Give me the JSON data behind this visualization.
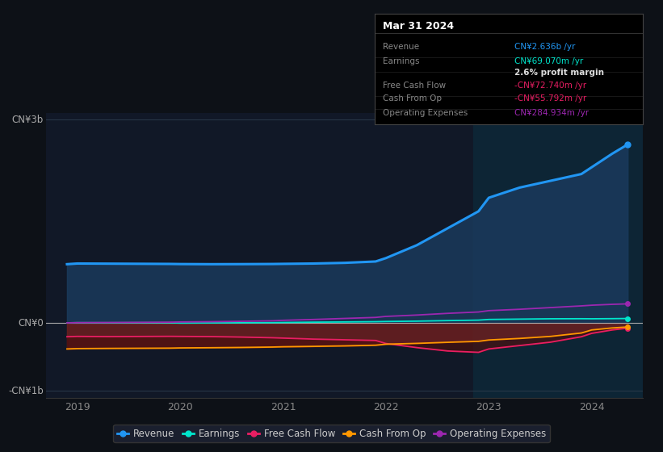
{
  "background_color": "#0d1117",
  "plot_bg_color": "#111827",
  "years": [
    2018.9,
    2019.0,
    2019.3,
    2019.6,
    2019.9,
    2020.0,
    2020.3,
    2020.6,
    2020.9,
    2021.0,
    2021.3,
    2021.6,
    2021.9,
    2022.0,
    2022.3,
    2022.6,
    2022.9,
    2023.0,
    2023.3,
    2023.6,
    2023.9,
    2024.0,
    2024.2,
    2024.35
  ],
  "revenue": [
    870,
    880,
    878,
    876,
    874,
    872,
    870,
    871,
    873,
    875,
    880,
    890,
    910,
    960,
    1150,
    1400,
    1650,
    1850,
    2000,
    2100,
    2200,
    2300,
    2500,
    2636
  ],
  "earnings": [
    5,
    8,
    7,
    8,
    7,
    2,
    4,
    6,
    8,
    10,
    15,
    18,
    22,
    25,
    30,
    38,
    45,
    55,
    60,
    65,
    66,
    65,
    67,
    69
  ],
  "free_cash_flow": [
    -200,
    -195,
    -198,
    -196,
    -194,
    -195,
    -198,
    -205,
    -215,
    -220,
    -235,
    -245,
    -255,
    -300,
    -360,
    -410,
    -430,
    -380,
    -330,
    -280,
    -200,
    -150,
    -100,
    -73
  ],
  "cash_from_op": [
    -380,
    -375,
    -372,
    -370,
    -368,
    -365,
    -362,
    -358,
    -352,
    -348,
    -342,
    -335,
    -325,
    -310,
    -298,
    -282,
    -268,
    -248,
    -225,
    -195,
    -145,
    -100,
    -70,
    -56
  ],
  "operating_expenses": [
    5,
    8,
    10,
    12,
    15,
    18,
    22,
    28,
    35,
    42,
    55,
    70,
    85,
    100,
    120,
    145,
    165,
    185,
    205,
    230,
    255,
    265,
    278,
    285
  ],
  "revenue_color": "#2196f3",
  "earnings_color": "#00e5cc",
  "free_cash_flow_color": "#e91e63",
  "cash_from_op_color": "#ff9800",
  "operating_expenses_color": "#9c27b0",
  "revenue_fill_color": "#1a3a5c",
  "dark_red_fill": "#5c1a1a",
  "ylim": [
    -1100,
    3100
  ],
  "xlim": [
    2018.7,
    2024.5
  ],
  "xticks": [
    2019,
    2020,
    2021,
    2022,
    2023,
    2024
  ],
  "ylabel_top": "CN¥3b",
  "ylabel_zero": "CN¥0",
  "ylabel_bottom": "-CN¥1b",
  "highlight_start": 2022.85,
  "tooltip_title": "Mar 31 2024",
  "tooltip_rows": [
    [
      "Revenue",
      "CN¥2.636b /yr",
      "#2196f3"
    ],
    [
      "Earnings",
      "CN¥69.070m /yr",
      "#00e5cc"
    ],
    [
      "",
      "2.6% profit margin",
      "#dddddd"
    ],
    [
      "Free Cash Flow",
      "-CN¥72.740m /yr",
      "#e91e63"
    ],
    [
      "Cash From Op",
      "-CN¥55.792m /yr",
      "#e91e63"
    ],
    [
      "Operating Expenses",
      "CN¥284.934m /yr",
      "#9c27b0"
    ]
  ],
  "legend_items": [
    [
      "Revenue",
      "#2196f3"
    ],
    [
      "Earnings",
      "#00e5cc"
    ],
    [
      "Free Cash Flow",
      "#e91e63"
    ],
    [
      "Cash From Op",
      "#ff9800"
    ],
    [
      "Operating Expenses",
      "#9c27b0"
    ]
  ]
}
